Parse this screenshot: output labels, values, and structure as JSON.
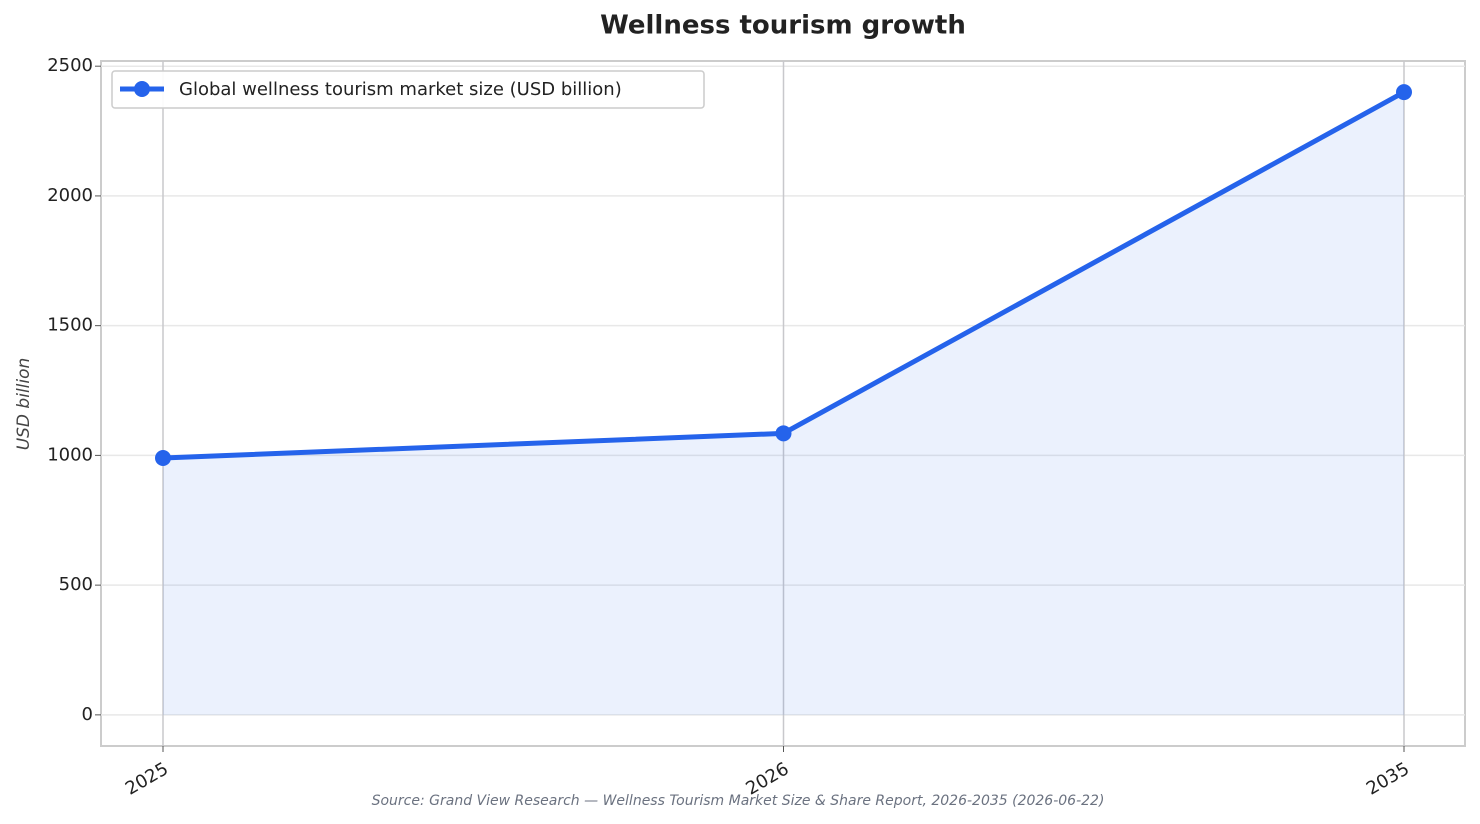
{
  "chart_data": {
    "type": "line",
    "title": "Wellness tourism growth",
    "ylabel": "USD billion",
    "source": "Source: Grand View Research — Wellness Tourism Market Size & Share Report, 2026-2035 (2026-06-22)",
    "categories": [
      "2025",
      "2026",
      "2035"
    ],
    "series": [
      {
        "name": "Global wellness tourism market size (USD billion)",
        "color": "#2563eb",
        "values": [
          990,
          1085,
          2400
        ]
      }
    ],
    "area": true,
    "ylim": [
      -120,
      2520
    ],
    "yticks": [
      0,
      500,
      1000,
      1500,
      2000,
      2500
    ],
    "grid": true,
    "legend": "upper left"
  }
}
